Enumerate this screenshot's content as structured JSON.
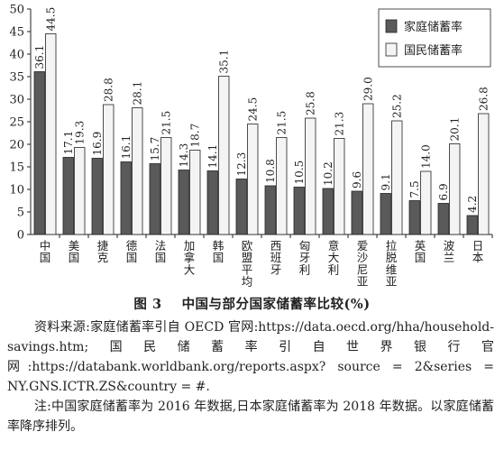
{
  "chart_data": {
    "type": "bar",
    "categories": [
      "中国",
      "美国",
      "捷克",
      "德国",
      "法国",
      "加拿大",
      "韩国",
      "欧盟平均",
      "西班牙",
      "匈牙利",
      "意大利",
      "爱沙尼亚",
      "拉脱维亚",
      "英国",
      "波兰",
      "日本"
    ],
    "series": [
      {
        "name": "家庭储蓄率",
        "values": [
          36.1,
          17.1,
          16.9,
          16.1,
          15.7,
          14.3,
          14.1,
          12.3,
          10.8,
          10.5,
          10.2,
          9.6,
          9.1,
          7.5,
          6.9,
          4.2
        ],
        "labels": [
          "36.1",
          "17.1",
          "16.9",
          "16.1",
          "15.7",
          "14.3",
          "14.1",
          "12.3",
          "10.8",
          "10.5",
          "10.2",
          "9.6",
          "9.1",
          "7.5",
          "6.9",
          "4.2"
        ]
      },
      {
        "name": "国民储蓄率",
        "values": [
          44.5,
          19.3,
          28.8,
          28.1,
          21.5,
          18.7,
          35.1,
          24.5,
          21.5,
          25.8,
          21.3,
          29.0,
          25.2,
          14.0,
          20.1,
          26.8
        ],
        "labels": [
          "44.5",
          "19.3",
          "28.8",
          "28.1",
          "21.5",
          "18.7",
          "35.1",
          "24.5",
          "21.5",
          "25.8",
          "21.3",
          "29.0",
          "25.2",
          "14.0",
          "20.1",
          "26.8"
        ]
      }
    ],
    "yticks": [
      0,
      5,
      10,
      15,
      20,
      25,
      30,
      35,
      40,
      45,
      50
    ],
    "ylim": [
      0,
      50
    ],
    "legend_position": "top-right",
    "colors": {
      "household": "#5a5a5a",
      "national": "#f4f4f4",
      "stroke": "#222222"
    }
  },
  "caption": {
    "title_label": "图 3",
    "title_text": "中国与部分国家储蓄率比较(%)",
    "source": "资料来源:家庭储蓄率引自 OECD 官网:https://data.oecd.org/hha/household-savings.htm;国民储蓄率引自世界银行官网:https://databank.worldbank.org/reports.aspx? source = 2&series = NY.GNS.ICTR.ZS&country = #.",
    "note": "注:中国家庭储蓄率为 2016 年数据,日本家庭储蓄率为 2018 年数据。以家庭储蓄率降序排列。"
  }
}
